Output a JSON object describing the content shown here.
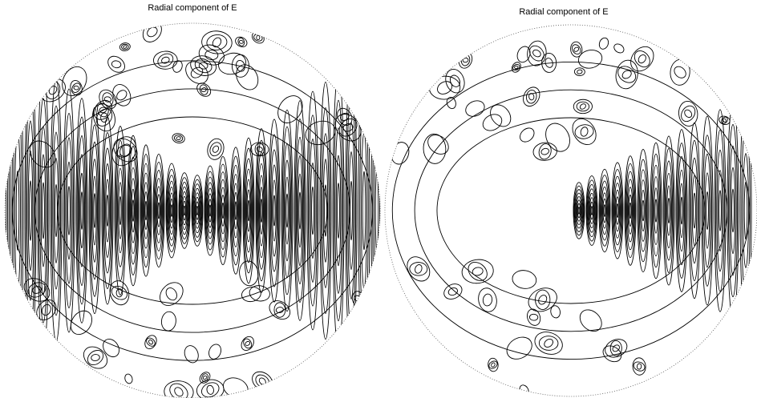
{
  "chart_data": [
    {
      "type": "contour",
      "title": "Radial component of E"
    },
    {
      "type": "contour",
      "title": "Radial component of E"
    }
  ]
}
